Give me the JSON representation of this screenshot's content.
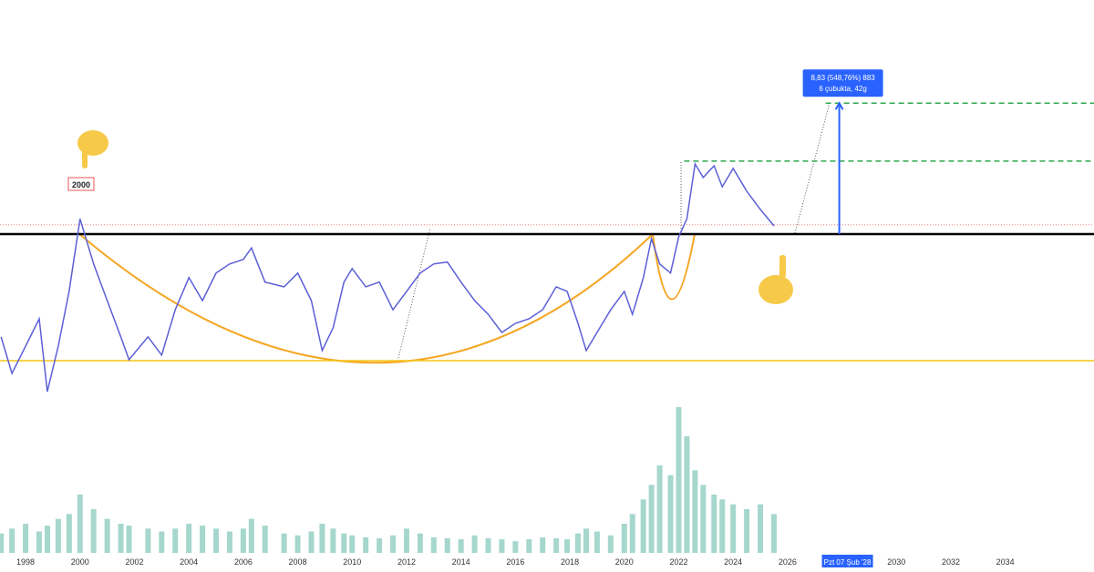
{
  "chart_data": {
    "type": "line",
    "log_scale": true,
    "x": [
      1997.1,
      1997.5,
      1998,
      1998.5,
      1998.8,
      1999.2,
      1999.6,
      2000.0,
      2000.5,
      2001.0,
      2001.5,
      2001.8,
      2002.5,
      2003.0,
      2003.5,
      2004.0,
      2004.5,
      2005.0,
      2005.5,
      2006.0,
      2006.3,
      2006.8,
      2007.5,
      2008.0,
      2008.5,
      2008.9,
      2009.3,
      2009.7,
      2010.0,
      2010.5,
      2011.0,
      2011.5,
      2012.0,
      2012.5,
      2013.0,
      2013.5,
      2014.0,
      2014.5,
      2015.0,
      2015.5,
      2016.0,
      2016.5,
      2017.0,
      2017.5,
      2017.9,
      2018.3,
      2018.6,
      2019.0,
      2019.5,
      2020.0,
      2020.3,
      2020.7,
      2021.0,
      2021.3,
      2021.7,
      2022.0,
      2022.3,
      2022.6,
      2022.9,
      2023.3,
      2023.6,
      2024.0,
      2024.5,
      2025.0,
      2025.5
    ],
    "series": [
      {
        "color": "#5b5fd6",
        "values": [
          0.371,
          0.22,
          0.325,
          0.48,
          0.17,
          0.325,
          0.71,
          2.0,
          1.05,
          0.623,
          0.371,
          0.268,
          0.371,
          0.286,
          0.546,
          0.864,
          0.623,
          0.922,
          1.05,
          1.12,
          1.32,
          0.811,
          0.758,
          0.922,
          0.623,
          0.305,
          0.423,
          0.811,
          0.984,
          0.758,
          0.811,
          0.546,
          0.71,
          0.922,
          1.05,
          1.08,
          0.811,
          0.623,
          0.512,
          0.395,
          0.45,
          0.48,
          0.546,
          0.758,
          0.71,
          0.45,
          0.305,
          0.395,
          0.546,
          0.71,
          0.512,
          0.864,
          1.51,
          1.05,
          0.922,
          1.55,
          2.0,
          4.38,
          3.61,
          4.27,
          3.16,
          4.11,
          2.97,
          2.29,
          1.81
        ]
      }
    ],
    "volume": {
      "color": "#7fc6b8",
      "values": [
        20,
        25,
        30,
        22,
        28,
        35,
        40,
        60,
        45,
        35,
        30,
        28,
        25,
        22,
        25,
        30,
        28,
        25,
        22,
        25,
        35,
        28,
        20,
        18,
        22,
        30,
        25,
        20,
        18,
        16,
        15,
        18,
        25,
        20,
        16,
        15,
        14,
        18,
        15,
        14,
        12,
        14,
        16,
        15,
        14,
        20,
        25,
        22,
        18,
        30,
        40,
        55,
        70,
        90,
        80,
        150,
        120,
        85,
        70,
        60,
        55,
        50,
        45,
        50,
        40
      ]
    },
    "xlim": [
      1997.06,
      2037.26
    ],
    "ylim": [
      0.149,
      45.5
    ],
    "xticks": [
      1998,
      2000,
      2002,
      2004,
      2006,
      2008,
      2010,
      2012,
      2014,
      2016,
      2018,
      2020,
      2022,
      2024,
      2026,
      2030,
      2032,
      2034
    ],
    "hlines": [
      {
        "value": 1.61,
        "color": "#000000"
      },
      {
        "value": 0.264,
        "color": "#f5c518"
      },
      {
        "value": 4.56,
        "color": "#2fa84f",
        "from": 2022.2
      },
      {
        "value": 10.44,
        "color": "#2fa84f",
        "from": 2027.4
      },
      {
        "value": 1.84,
        "color": "#f08080"
      }
    ],
    "label_2000": "2000",
    "measure": {
      "line1": "8,83 (548,76%) 883",
      "line2": "6 çubukta, 42g",
      "x": 2027.9,
      "from": 1.61,
      "to": 10.44
    },
    "cursor_date": {
      "x": 2028.2,
      "label": "Pzt 07 Şub '28"
    }
  }
}
